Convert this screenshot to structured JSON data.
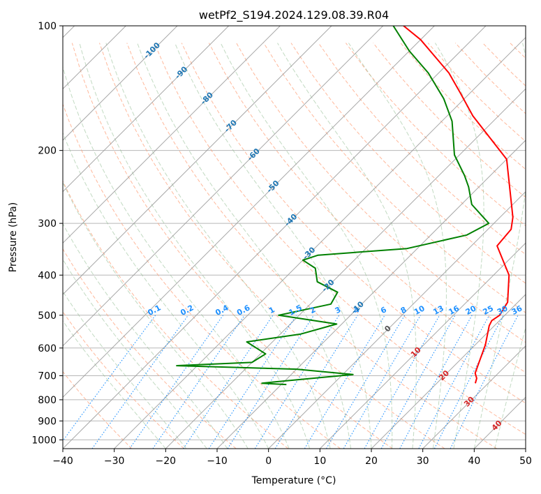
{
  "chart_data": {
    "type": "line",
    "title": "wetPf2_S194.2024.129.08.39.R04",
    "xlabel": "Temperature (°C)",
    "ylabel": "Pressure (hPa)",
    "xlim": [
      -40,
      50
    ],
    "ylim": [
      1050,
      100
    ],
    "y_scale": "log",
    "x_ticks": [
      -40,
      -30,
      -20,
      -10,
      0,
      10,
      20,
      30,
      40,
      50
    ],
    "y_ticks": [
      100,
      200,
      300,
      400,
      500,
      600,
      700,
      800,
      900,
      1000
    ],
    "skew": "skew-T log-p",
    "grid": true,
    "series": [
      {
        "color": "#ff0000",
        "points": [
          {
            "t": 27.5,
            "p": 730
          },
          {
            "t": 26.8,
            "p": 710
          },
          {
            "t": 25.5,
            "p": 690
          },
          {
            "t": 24.5,
            "p": 660
          },
          {
            "t": 22.0,
            "p": 590
          },
          {
            "t": 19.0,
            "p": 530
          },
          {
            "t": 18.5,
            "p": 515
          },
          {
            "t": 19.0,
            "p": 500
          },
          {
            "t": 18.0,
            "p": 465
          },
          {
            "t": 13.0,
            "p": 400
          },
          {
            "t": 5.0,
            "p": 340
          },
          {
            "t": 4.5,
            "p": 310
          },
          {
            "t": 2.5,
            "p": 290
          },
          {
            "t": -10.0,
            "p": 210
          },
          {
            "t": -25.0,
            "p": 165
          },
          {
            "t": -32.0,
            "p": 145
          },
          {
            "t": -38.0,
            "p": 130
          },
          {
            "t": -50.0,
            "p": 108
          },
          {
            "t": -56.0,
            "p": 100
          }
        ]
      },
      {
        "color": "#008000",
        "points": [
          {
            "t": -9.0,
            "p": 735
          },
          {
            "t": -14.0,
            "p": 730
          },
          {
            "t": -12.0,
            "p": 725
          },
          {
            "t": 2.0,
            "p": 695
          },
          {
            "t": -10.0,
            "p": 675
          },
          {
            "t": -34.0,
            "p": 662
          },
          {
            "t": -20.0,
            "p": 650
          },
          {
            "t": -19.0,
            "p": 620
          },
          {
            "t": -25.0,
            "p": 580
          },
          {
            "t": -16.0,
            "p": 555
          },
          {
            "t": -11.0,
            "p": 525
          },
          {
            "t": -24.0,
            "p": 500
          },
          {
            "t": -16.0,
            "p": 470
          },
          {
            "t": -17.0,
            "p": 440
          },
          {
            "t": -23.0,
            "p": 415
          },
          {
            "t": -26.0,
            "p": 385
          },
          {
            "t": -30.0,
            "p": 368
          },
          {
            "t": -28.0,
            "p": 358
          },
          {
            "t": -12.0,
            "p": 345
          },
          {
            "t": -3.0,
            "p": 320
          },
          {
            "t": -1.0,
            "p": 300
          },
          {
            "t": -8.0,
            "p": 270
          },
          {
            "t": -12.0,
            "p": 245
          },
          {
            "t": -15.0,
            "p": 230
          },
          {
            "t": -21.0,
            "p": 205
          },
          {
            "t": -28.0,
            "p": 170
          },
          {
            "t": -34.0,
            "p": 150
          },
          {
            "t": -42.0,
            "p": 130
          },
          {
            "t": -50.0,
            "p": 115
          },
          {
            "t": -58.0,
            "p": 100
          }
        ]
      }
    ],
    "isotherm_labels": [
      "-100",
      "-90",
      "-80",
      "-70",
      "-60",
      "-50",
      "-40",
      "-30",
      "-20",
      "-10",
      "0",
      "10",
      "20",
      "30",
      "40"
    ],
    "mixing_ratio_labels": [
      "0.1",
      "0.2",
      "0.4",
      "0.6",
      "1",
      "1.5",
      "2",
      "3",
      "4",
      "6",
      "8",
      "10",
      "13",
      "16",
      "20",
      "25",
      "30",
      "36"
    ],
    "colors": {
      "temperature": "#ff0000",
      "dewpoint": "#008000",
      "isotherm_label_cold": "#1f77b4",
      "isotherm_label_zero": "#555555",
      "isotherm_label_warm": "#d62728",
      "mixing_ratio": "#1e90ff",
      "dry_adiabat": "#ffa07a",
      "moist_adiabat": "#8fbc8f",
      "grid": "#999999"
    }
  }
}
